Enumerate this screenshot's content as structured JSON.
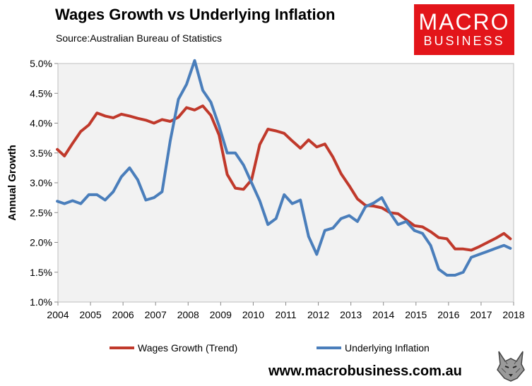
{
  "header": {
    "title": "Wages Growth vs Underlying Inflation",
    "source": "Source:Australian Bureau of Statistics"
  },
  "logo": {
    "line1": "MACRO",
    "line2": "BUSINESS"
  },
  "footer": {
    "website": "www.macrobusiness.com.au"
  },
  "colors": {
    "wages": "#c0392b",
    "inflation": "#4a7ebb",
    "plot_bg": "#f2f2f2",
    "logo_bg": "#e3151a"
  },
  "chart_data": {
    "type": "line",
    "title": "Wages Growth vs Underlying Inflation",
    "xlabel": "",
    "ylabel": "Annual Growth",
    "xlim": [
      2004,
      2018
    ],
    "ylim": [
      1.0,
      5.0
    ],
    "x_ticks": [
      2004,
      2005,
      2006,
      2007,
      2008,
      2009,
      2010,
      2011,
      2012,
      2013,
      2014,
      2015,
      2016,
      2017,
      2018
    ],
    "x_tick_labels": [
      "2004",
      "2005",
      "2006",
      "2007",
      "2008",
      "2009",
      "2010",
      "2011",
      "2012",
      "2013",
      "2014",
      "2015",
      "2016",
      "2017",
      "2018"
    ],
    "y_ticks": [
      1.0,
      1.5,
      2.0,
      2.5,
      3.0,
      3.5,
      4.0,
      4.5,
      5.0
    ],
    "y_tick_labels": [
      "1.0%",
      "1.5%",
      "2.0%",
      "2.5%",
      "3.0%",
      "3.5%",
      "4.0%",
      "4.5%",
      "5.0%"
    ],
    "grid": false,
    "legend_position": "bottom",
    "series": [
      {
        "name": "Wages Growth (Trend)",
        "color": "#c0392b",
        "x": [
          2003.98,
          2004.2,
          2004.45,
          2004.7,
          2004.95,
          2005.2,
          2005.45,
          2005.7,
          2005.95,
          2006.2,
          2006.45,
          2006.7,
          2006.95,
          2007.2,
          2007.45,
          2007.7,
          2007.95,
          2008.2,
          2008.45,
          2008.7,
          2008.95,
          2009.2,
          2009.45,
          2009.7,
          2009.95,
          2010.2,
          2010.45,
          2010.7,
          2010.95,
          2011.2,
          2011.45,
          2011.7,
          2011.95,
          2012.2,
          2012.45,
          2012.7,
          2012.95,
          2013.2,
          2013.45,
          2013.7,
          2013.95,
          2014.2,
          2014.45,
          2014.7,
          2014.95,
          2015.2,
          2015.45,
          2015.7,
          2015.95,
          2016.2,
          2016.45,
          2016.7,
          2016.95,
          2017.2,
          2017.45,
          2017.7,
          2017.9
        ],
        "values": [
          3.56,
          3.45,
          3.66,
          3.86,
          3.97,
          4.17,
          4.12,
          4.09,
          4.15,
          4.12,
          4.08,
          4.05,
          4.0,
          4.06,
          4.03,
          4.1,
          4.26,
          4.22,
          4.29,
          4.13,
          3.8,
          3.14,
          2.91,
          2.89,
          3.05,
          3.64,
          3.9,
          3.87,
          3.83,
          3.7,
          3.58,
          3.72,
          3.6,
          3.65,
          3.43,
          3.15,
          2.95,
          2.73,
          2.62,
          2.61,
          2.58,
          2.5,
          2.48,
          2.38,
          2.28,
          2.26,
          2.18,
          2.08,
          2.06,
          1.89,
          1.89,
          1.87,
          1.93,
          2.0,
          2.07,
          2.15,
          2.06
        ]
      },
      {
        "name": "Underlying Inflation",
        "color": "#4a7ebb",
        "x": [
          2003.98,
          2004.2,
          2004.45,
          2004.7,
          2004.95,
          2005.2,
          2005.45,
          2005.7,
          2005.95,
          2006.2,
          2006.45,
          2006.7,
          2006.95,
          2007.2,
          2007.45,
          2007.7,
          2007.95,
          2008.2,
          2008.45,
          2008.7,
          2008.95,
          2009.2,
          2009.45,
          2009.7,
          2009.95,
          2010.2,
          2010.45,
          2010.7,
          2010.95,
          2011.2,
          2011.45,
          2011.7,
          2011.95,
          2012.2,
          2012.45,
          2012.7,
          2012.95,
          2013.2,
          2013.45,
          2013.7,
          2013.95,
          2014.2,
          2014.45,
          2014.7,
          2014.95,
          2015.2,
          2015.45,
          2015.7,
          2015.95,
          2016.2,
          2016.45,
          2016.7,
          2016.95,
          2017.2,
          2017.45,
          2017.7,
          2017.9
        ],
        "values": [
          2.69,
          2.65,
          2.7,
          2.65,
          2.8,
          2.8,
          2.71,
          2.85,
          3.1,
          3.25,
          3.05,
          2.71,
          2.75,
          2.85,
          3.7,
          4.4,
          4.65,
          5.05,
          4.55,
          4.35,
          3.95,
          3.5,
          3.5,
          3.3,
          3.0,
          2.7,
          2.3,
          2.4,
          2.8,
          2.65,
          2.71,
          2.1,
          1.8,
          2.2,
          2.24,
          2.4,
          2.45,
          2.35,
          2.6,
          2.66,
          2.75,
          2.5,
          2.3,
          2.35,
          2.2,
          2.15,
          1.95,
          1.55,
          1.45,
          1.45,
          1.5,
          1.75,
          1.8,
          1.85,
          1.9,
          1.95,
          1.9
        ]
      }
    ]
  }
}
